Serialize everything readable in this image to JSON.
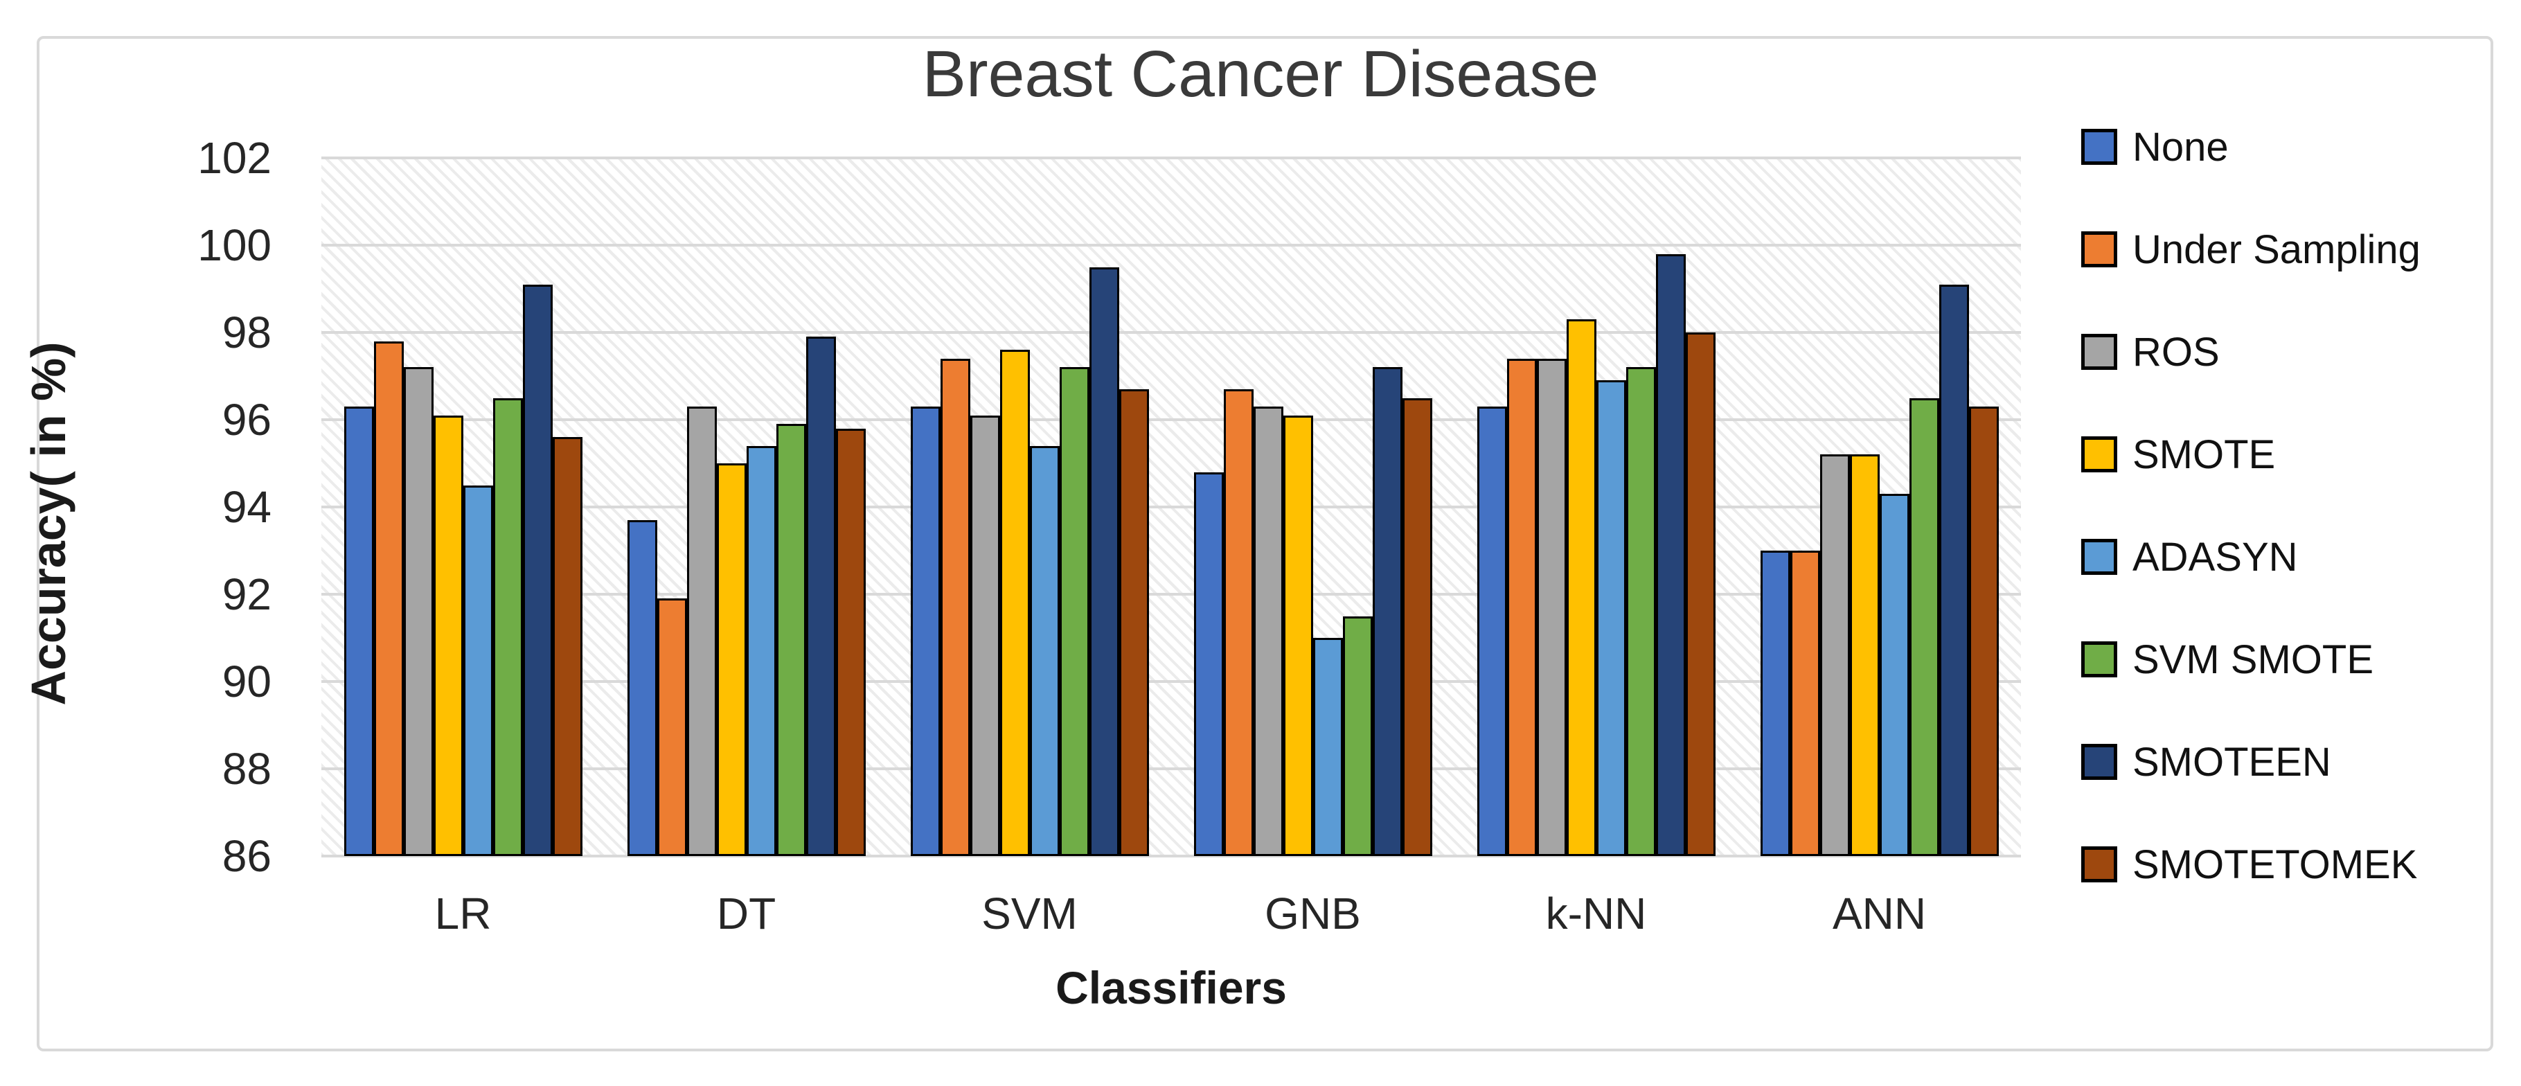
{
  "chart_data": {
    "type": "bar",
    "title": "Breast Cancer Disease",
    "xlabel": "Classifiers",
    "ylabel": "Accuracy( in %)",
    "categories": [
      "LR",
      "DT",
      "SVM",
      "GNB",
      "k-NN",
      "ANN"
    ],
    "series": [
      {
        "name": "None",
        "color": "#4472C4",
        "values": [
          96.3,
          93.7,
          96.3,
          94.8,
          96.3,
          93.0
        ]
      },
      {
        "name": "Under Sampling",
        "color": "#ED7D31",
        "values": [
          97.8,
          91.9,
          97.4,
          96.7,
          97.4,
          93.0
        ]
      },
      {
        "name": "ROS",
        "color": "#A5A5A5",
        "values": [
          97.2,
          96.3,
          96.1,
          96.3,
          97.4,
          95.2
        ]
      },
      {
        "name": "SMOTE",
        "color": "#FFC000",
        "values": [
          96.1,
          95.0,
          97.6,
          96.1,
          98.3,
          95.2
        ]
      },
      {
        "name": "ADASYN",
        "color": "#5B9BD5",
        "values": [
          94.5,
          95.4,
          95.4,
          91.0,
          96.9,
          94.3
        ]
      },
      {
        "name": "SVM SMOTE",
        "color": "#70AD47",
        "values": [
          96.5,
          95.9,
          97.2,
          91.5,
          97.2,
          96.5
        ]
      },
      {
        "name": "SMOTEEN",
        "color": "#264478",
        "values": [
          99.1,
          97.9,
          99.5,
          97.2,
          99.8,
          99.1
        ]
      },
      {
        "name": "SMOTETOMEK",
        "color": "#9E480E",
        "values": [
          95.6,
          95.8,
          96.7,
          96.5,
          98.0,
          96.3
        ]
      }
    ],
    "ylim": [
      86,
      102
    ],
    "yticks": [
      102,
      100,
      98,
      96,
      94,
      92,
      90,
      88,
      86
    ],
    "grid": true,
    "legend_position": "right",
    "plot_background": "light-diagonal-hatch",
    "gridline_color": "#d9d9d9",
    "bar_outline_color": "#000000"
  }
}
